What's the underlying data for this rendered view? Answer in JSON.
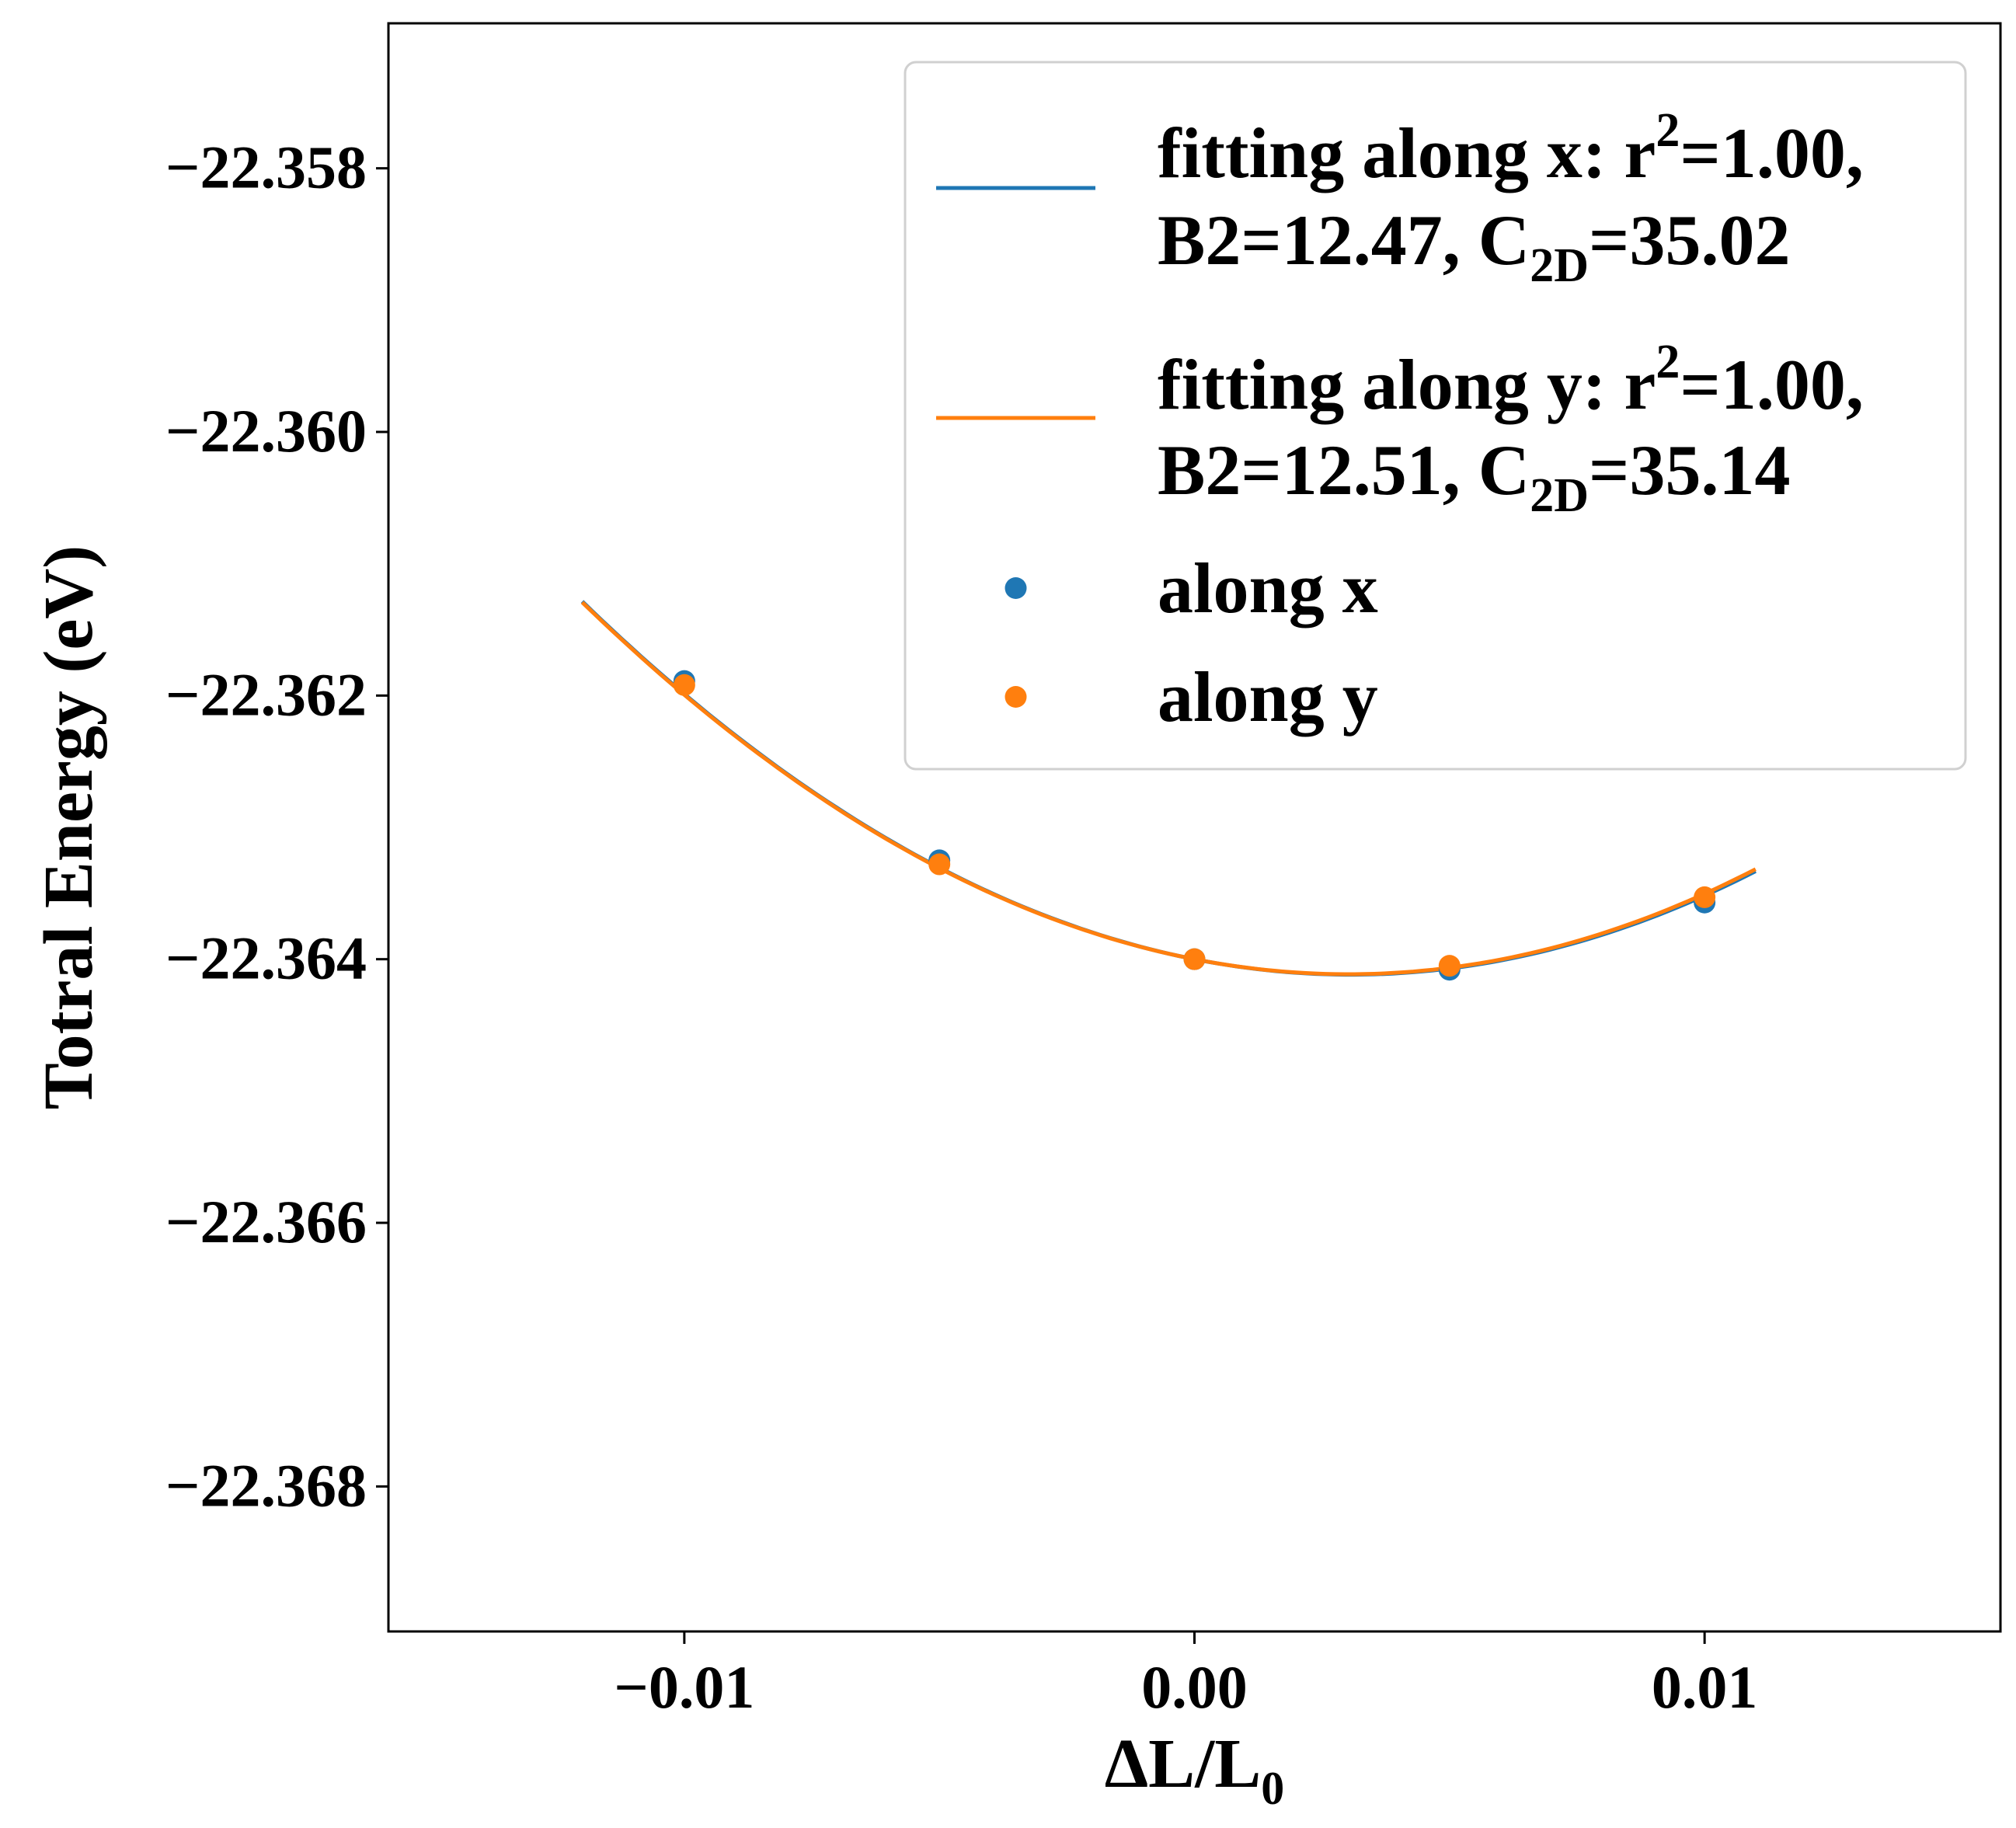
{
  "chart_data": {
    "type": "scatter",
    "title": "",
    "xlabel": "ΔL/L",
    "xlabel_sub": "0",
    "ylabel": "Totral Energy (eV)",
    "xlim": [
      -0.0158,
      0.0158
    ],
    "ylim": [
      -22.3691,
      -22.3569
    ],
    "x_ticks": [
      {
        "value": -0.01,
        "label": "−0.01"
      },
      {
        "value": 0.0,
        "label": "0.00"
      },
      {
        "value": 0.01,
        "label": "0.01"
      }
    ],
    "y_ticks": [
      {
        "value": -22.358,
        "label": "−22.358"
      },
      {
        "value": -22.36,
        "label": "−22.360"
      },
      {
        "value": -22.362,
        "label": "−22.362"
      },
      {
        "value": -22.364,
        "label": "−22.364"
      },
      {
        "value": -22.366,
        "label": "−22.366"
      },
      {
        "value": -22.368,
        "label": "−22.368"
      }
    ],
    "grid": false,
    "legend_position": "top-right",
    "fit_x_range": [
      -0.012,
      0.011
    ],
    "series": [
      {
        "name": "along x",
        "kind": "scatter",
        "color": "#1f77b4",
        "x": [
          -0.01,
          -0.005,
          0.0,
          0.005,
          0.01
        ],
        "y": [
          -22.36189,
          -22.36325,
          -22.364,
          -22.36408,
          -22.36357
        ]
      },
      {
        "name": "along y",
        "kind": "scatter",
        "color": "#ff7f0e",
        "x": [
          -0.01,
          -0.005,
          0.0,
          0.005,
          0.01
        ],
        "y": [
          -22.36192,
          -22.36328,
          -22.364,
          -22.36405,
          -22.36353
        ]
      },
      {
        "kind": "fit",
        "color": "#1f77b4",
        "legend_line1_pre": "fitting along x: r",
        "legend_line1_sup": "2",
        "legend_line1_post": "=1.00,",
        "legend_line2_pre": "B2=12.47, C",
        "legend_line2_sub": "2D",
        "legend_line2_post": "=35.02",
        "coefficients": {
          "a": 12.47,
          "b": -0.0765,
          "c": -22.364
        }
      },
      {
        "kind": "fit",
        "color": "#ff7f0e",
        "legend_line1_pre": "fitting along y: r",
        "legend_line1_sup": "2",
        "legend_line1_post": "=1.00,",
        "legend_line2_pre": "B2=12.51, C",
        "legend_line2_sub": "2D",
        "legend_line2_post": "=35.14",
        "coefficients": {
          "a": 12.51,
          "b": -0.0755,
          "c": -22.364
        }
      }
    ]
  }
}
